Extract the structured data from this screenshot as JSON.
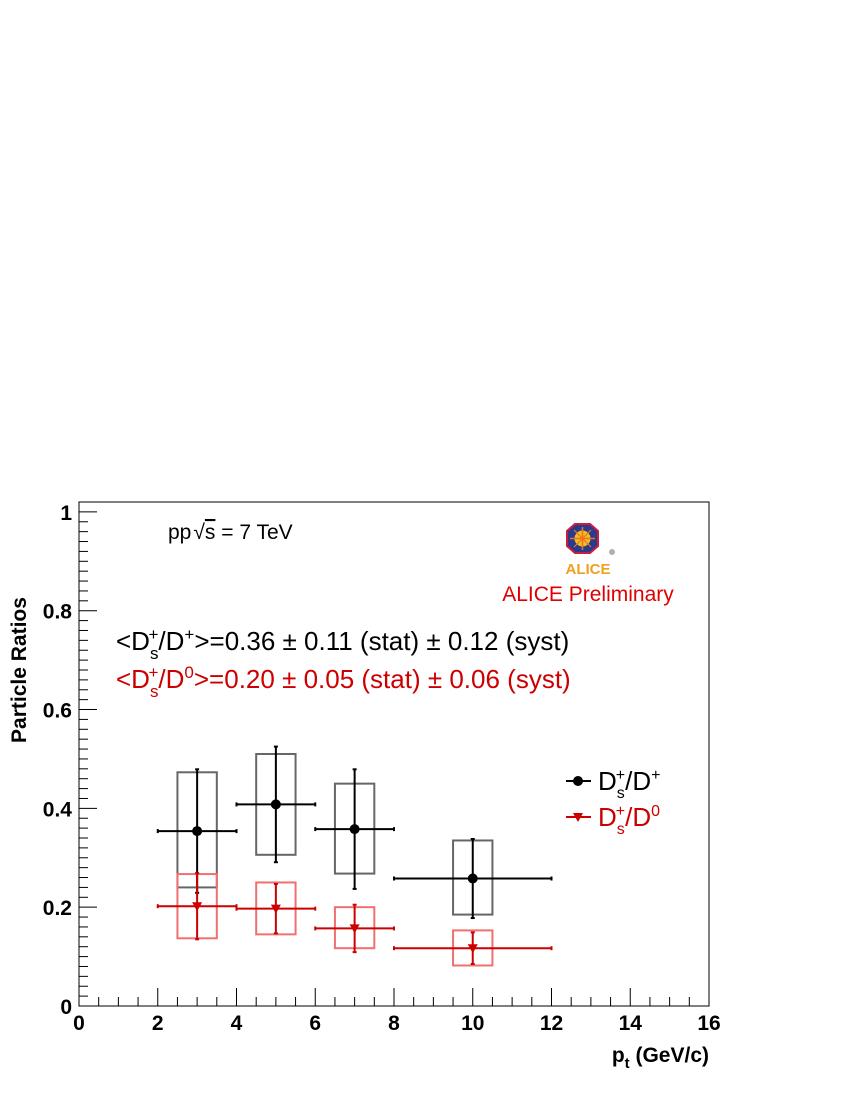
{
  "chart_data": {
    "type": "scatter",
    "xlabel": "p",
    "xlabel_sub": "t",
    "xlabel_units": " (GeV/c)",
    "ylabel": "Particle Ratios",
    "xlim": [
      0,
      16
    ],
    "ylim": [
      0,
      1.02
    ],
    "x_ticks": [
      "0",
      "2",
      "4",
      "6",
      "8",
      "10",
      "12",
      "14",
      "16"
    ],
    "y_ticks": [
      "0",
      "0.2",
      "0.4",
      "0.6",
      "0.8",
      "1"
    ],
    "energy_label": {
      "pre": "pp",
      "sqrt": "s",
      "post": " = 7 TeV"
    },
    "logo_text": "ALICE",
    "preliminary_label": "ALICE Preliminary",
    "annotations": [
      {
        "color": "#000000",
        "pre": "<D",
        "sub": "s",
        "sup1": "+",
        "mid": "/D",
        "sup2": "+",
        "post": ">=0.36 ± 0.11 (stat) ± 0.12 (syst)"
      },
      {
        "color": "#cc0000",
        "pre": "<D",
        "sub": "s",
        "sup1": "+",
        "mid": "/D",
        "sup2": "0",
        "post": ">=0.20 ± 0.05 (stat) ± 0.06 (syst)"
      }
    ],
    "series": [
      {
        "name": {
          "pre": "D",
          "sub": "s",
          "sup1": "+",
          "mid": "/D",
          "sup2": "+"
        },
        "color": "#000000",
        "box_color": "#666666",
        "marker": "circle",
        "points": [
          {
            "x": 3,
            "xlow": 2,
            "xhigh": 4,
            "y": 0.354,
            "stat": 0.125,
            "syst_low": 0.24,
            "syst_high": 0.473
          },
          {
            "x": 5,
            "xlow": 4,
            "xhigh": 6,
            "y": 0.408,
            "stat": 0.117,
            "syst_low": 0.306,
            "syst_high": 0.51
          },
          {
            "x": 7,
            "xlow": 6,
            "xhigh": 8,
            "y": 0.358,
            "stat": 0.121,
            "syst_low": 0.268,
            "syst_high": 0.45
          },
          {
            "x": 10,
            "xlow": 8,
            "xhigh": 12,
            "y": 0.258,
            "stat": 0.08,
            "syst_low": 0.185,
            "syst_high": 0.335
          }
        ]
      },
      {
        "name": {
          "pre": "D",
          "sub": "s",
          "sup1": "+",
          "mid": "/D",
          "sup2": "0"
        },
        "color": "#cc0000",
        "box_color": "#f07070",
        "marker": "triangle-down",
        "points": [
          {
            "x": 3,
            "xlow": 2,
            "xhigh": 4,
            "y": 0.202,
            "stat": 0.067,
            "syst_low": 0.137,
            "syst_high": 0.267
          },
          {
            "x": 5,
            "xlow": 4,
            "xhigh": 6,
            "y": 0.197,
            "stat": 0.05,
            "syst_low": 0.145,
            "syst_high": 0.25
          },
          {
            "x": 7,
            "xlow": 6,
            "xhigh": 8,
            "y": 0.157,
            "stat": 0.048,
            "syst_low": 0.117,
            "syst_high": 0.2
          },
          {
            "x": 10,
            "xlow": 8,
            "xhigh": 12,
            "y": 0.117,
            "stat": 0.032,
            "syst_low": 0.082,
            "syst_high": 0.153
          }
        ]
      }
    ],
    "legend_position": "right"
  }
}
